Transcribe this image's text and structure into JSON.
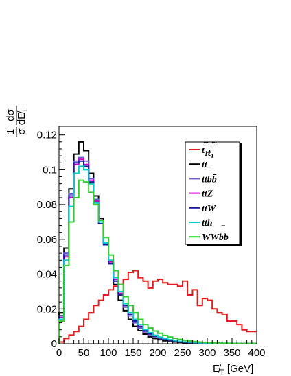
{
  "chart_data": {
    "type": "line",
    "style": "step-histogram",
    "xlabel": "E̸T [GeV]",
    "ylabel": "1 dσ / σ dE̸T",
    "xlim": [
      0,
      400
    ],
    "ylim": [
      0,
      0.125
    ],
    "x_ticks": [
      0,
      50,
      100,
      150,
      200,
      250,
      300,
      350,
      400
    ],
    "y_ticks": [
      0,
      0.02,
      0.04,
      0.06,
      0.08,
      0.1,
      0.12
    ],
    "y_tick_labels": [
      "0",
      "0.02",
      "0.04",
      "0.06",
      "0.08",
      "0.1",
      "0.12"
    ],
    "grid": false,
    "legend_position": "top-right",
    "bin_width": 10,
    "x": [
      5,
      15,
      25,
      35,
      45,
      55,
      65,
      75,
      85,
      95,
      105,
      115,
      125,
      135,
      145,
      155,
      165,
      175,
      185,
      195,
      205,
      215,
      225,
      235,
      245,
      255,
      265,
      275,
      285,
      295,
      305,
      315,
      325,
      335,
      345,
      355,
      365,
      375,
      385,
      395
    ],
    "series": [
      {
        "name": "t̃1t̃1*",
        "color": "#e41a1c",
        "values": [
          0.001,
          0.003,
          0.005,
          0.007,
          0.01,
          0.014,
          0.018,
          0.022,
          0.025,
          0.028,
          0.031,
          0.033,
          0.034,
          0.037,
          0.041,
          0.042,
          0.038,
          0.036,
          0.032,
          0.036,
          0.037,
          0.035,
          0.034,
          0.034,
          0.033,
          0.036,
          0.028,
          0.031,
          0.022,
          0.026,
          0.025,
          0.02,
          0.018,
          0.017,
          0.013,
          0.013,
          0.011,
          0.008,
          0.007,
          0.007
        ]
      },
      {
        "name": "tt̄",
        "color": "#000000",
        "values": [
          0.018,
          0.055,
          0.089,
          0.109,
          0.116,
          0.111,
          0.098,
          0.085,
          0.072,
          0.058,
          0.046,
          0.034,
          0.025,
          0.019,
          0.014,
          0.01,
          0.0075,
          0.0055,
          0.004,
          0.003,
          0.0023,
          0.0017,
          0.0013,
          0.001,
          0.0008,
          0.0006,
          0.0005,
          0.0004,
          0.0003,
          0.00025,
          0.0002,
          0.00015,
          0.00012,
          0.0001,
          8e-05,
          6e-05,
          5e-05,
          4e-05,
          3e-05,
          2e-05
        ]
      },
      {
        "name": "tt̄bb̄",
        "color": "#6a5acd",
        "values": [
          0.016,
          0.052,
          0.086,
          0.105,
          0.107,
          0.105,
          0.095,
          0.083,
          0.071,
          0.058,
          0.047,
          0.036,
          0.028,
          0.021,
          0.016,
          0.012,
          0.009,
          0.0068,
          0.0052,
          0.004,
          0.003,
          0.0023,
          0.0018,
          0.0014,
          0.0011,
          0.0009,
          0.0007,
          0.0005,
          0.0004,
          0.0003,
          0.00025,
          0.0002,
          0.00015,
          0.00012,
          0.0001,
          8e-05,
          6e-05,
          5e-05,
          4e-05,
          3e-05
        ]
      },
      {
        "name": "tt̄Z",
        "color": "#cc00cc",
        "values": [
          0.015,
          0.05,
          0.084,
          0.103,
          0.106,
          0.103,
          0.094,
          0.082,
          0.07,
          0.058,
          0.047,
          0.037,
          0.029,
          0.022,
          0.017,
          0.013,
          0.01,
          0.0075,
          0.0058,
          0.0045,
          0.0034,
          0.0026,
          0.002,
          0.0016,
          0.0012,
          0.001,
          0.0008,
          0.0006,
          0.0005,
          0.0004,
          0.0003,
          0.00025,
          0.0002,
          0.00015,
          0.00012,
          0.0001,
          8e-05,
          6e-05,
          5e-05,
          4e-05
        ]
      },
      {
        "name": "tt̄W",
        "color": "#1a1aa0",
        "values": [
          0.016,
          0.051,
          0.085,
          0.104,
          0.105,
          0.102,
          0.093,
          0.081,
          0.069,
          0.057,
          0.046,
          0.036,
          0.028,
          0.022,
          0.017,
          0.013,
          0.0098,
          0.0074,
          0.0057,
          0.0044,
          0.0034,
          0.0026,
          0.002,
          0.0016,
          0.0012,
          0.001,
          0.0008,
          0.0006,
          0.0005,
          0.0004,
          0.0003,
          0.00025,
          0.0002,
          0.00015,
          0.00012,
          0.0001,
          8e-05,
          6e-05,
          5e-05,
          4e-05
        ]
      },
      {
        "name": "tt̄h",
        "color": "#00cccc",
        "values": [
          0.014,
          0.048,
          0.079,
          0.098,
          0.102,
          0.1,
          0.092,
          0.081,
          0.07,
          0.058,
          0.048,
          0.038,
          0.03,
          0.023,
          0.018,
          0.014,
          0.011,
          0.0082,
          0.0063,
          0.0049,
          0.0038,
          0.003,
          0.0023,
          0.0018,
          0.0014,
          0.0011,
          0.0009,
          0.0007,
          0.0005,
          0.0004,
          0.0003,
          0.00025,
          0.0002,
          0.00015,
          0.00012,
          0.0001,
          8e-05,
          6e-05,
          5e-05,
          4e-05
        ]
      },
      {
        "name": "WWbb̄",
        "color": "#33cc33",
        "values": [
          0.013,
          0.045,
          0.07,
          0.084,
          0.094,
          0.093,
          0.087,
          0.08,
          0.071,
          0.061,
          0.051,
          0.042,
          0.034,
          0.027,
          0.022,
          0.018,
          0.014,
          0.011,
          0.009,
          0.0073,
          0.006,
          0.0048,
          0.0039,
          0.0031,
          0.0025,
          0.002,
          0.0016,
          0.0013,
          0.001,
          0.0008,
          0.0007,
          0.0005,
          0.0004,
          0.0003,
          0.00025,
          0.0002,
          0.00015,
          0.00012,
          0.0001,
          8e-05
        ]
      }
    ]
  },
  "legend": {
    "items": [
      {
        "base": "t",
        "accent": "~",
        "sub": "1",
        "base2": "t",
        "accent2": "~",
        "sub2": "1",
        "tail": ""
      },
      {
        "base": "t",
        "accent": "",
        "sub": "",
        "base2": "t",
        "accent2": "−",
        "sub2": "",
        "tail": ""
      },
      {
        "base": "t",
        "accent": "",
        "sub": "",
        "base2": "t",
        "accent2": "−",
        "sub2": "",
        "tail": "bb̄"
      },
      {
        "base": "t",
        "accent": "",
        "sub": "",
        "base2": "t",
        "accent2": "−",
        "sub2": "",
        "tail": "Z"
      },
      {
        "base": "t",
        "accent": "",
        "sub": "",
        "base2": "t",
        "accent2": "−",
        "sub2": "",
        "tail": "W"
      },
      {
        "base": "t",
        "accent": "",
        "sub": "",
        "base2": "t",
        "accent2": "−",
        "sub2": "",
        "tail": "h"
      },
      {
        "base": "WWb",
        "accent": "",
        "sub": "",
        "base2": "b",
        "accent2": "−",
        "sub2": "",
        "tail": ""
      }
    ]
  },
  "axis_text": {
    "x_main": "E̸",
    "x_sub": "T",
    "x_unit": " [GeV]",
    "y_num": "1",
    "y_den": "σ",
    "y_dnum": "dσ",
    "y_dden": "dE̸",
    "y_dden_sub": "T"
  }
}
